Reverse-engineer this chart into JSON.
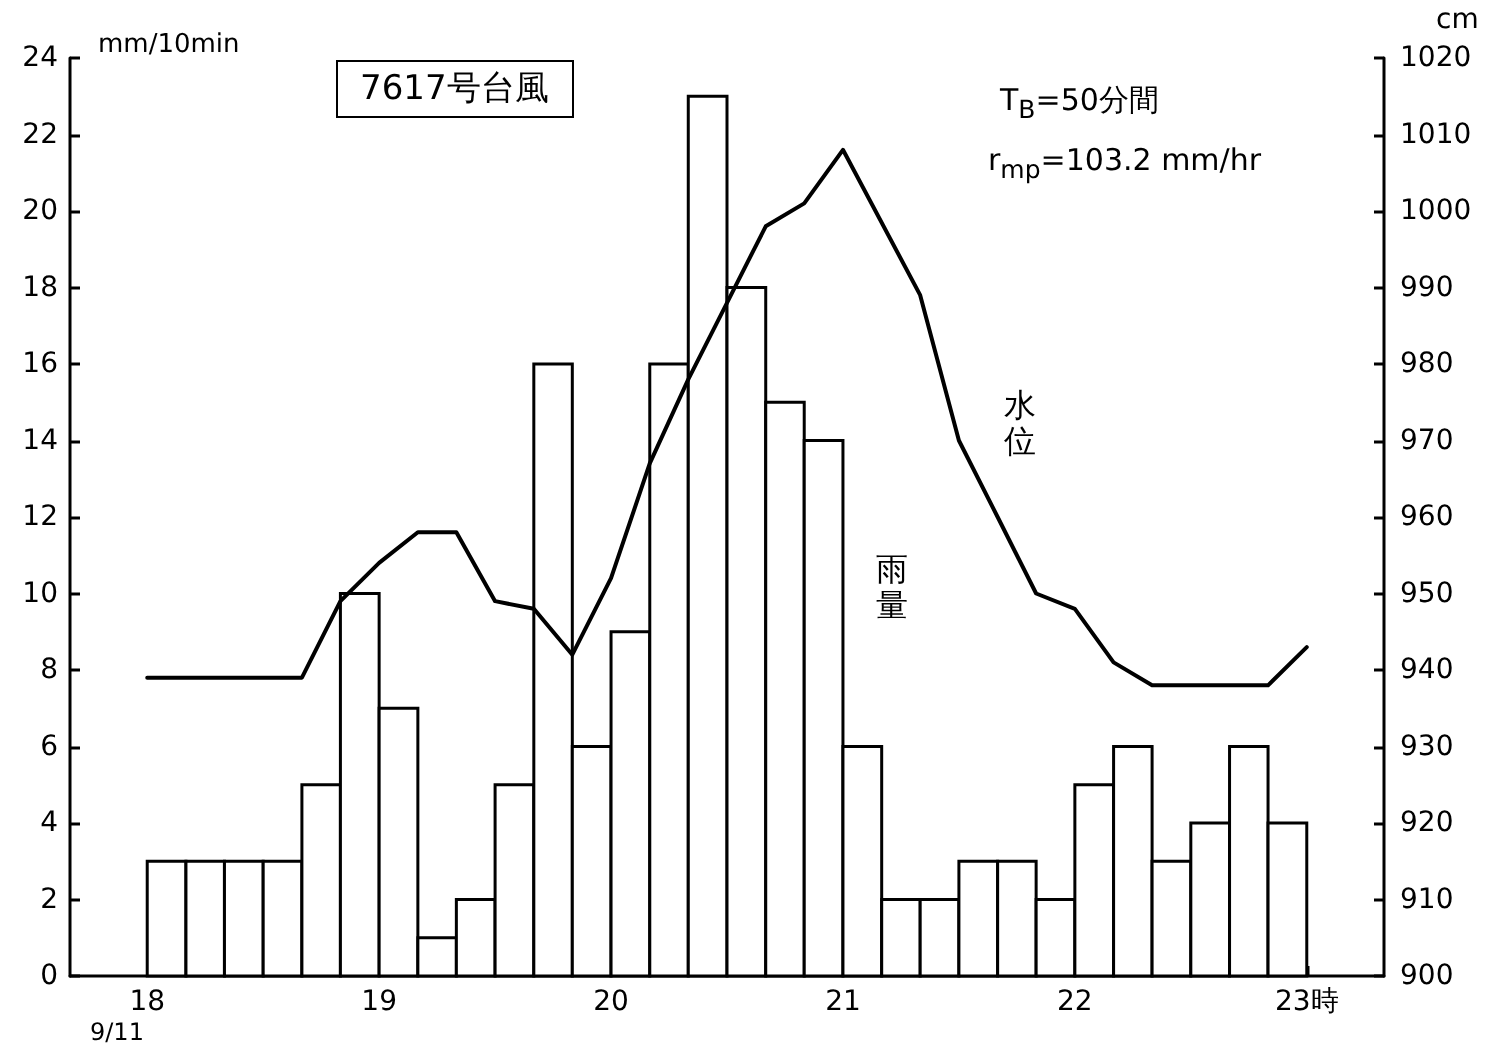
{
  "chart_data": {
    "type": "histogram",
    "title": "7617号台風",
    "ylabel": "mm/10min",
    "y2label": "cm",
    "annotations": [
      "T$_{B}$=50分間",
      "r$_{mp}$=103.2 mm/hr",
      "9/11"
    ],
    "bins": [
      18,
      18.167,
      18.333,
      18.5,
      18.667,
      18.833,
      19,
      19.167,
      19.333,
      19.5,
      19.667,
      19.833,
      20,
      20.167,
      20.333,
      20.5,
      20.667,
      20.833,
      21,
      21.167,
      21.333,
      21.5,
      21.667,
      21.833,
      22,
      22.167,
      22.333,
      22.5,
      22.667,
      22.833,
      23
    ],
    "series": [
      {
        "name": "雨量",
        "color": "#000000",
        "values": [
          3,
          3,
          3,
          3,
          5,
          10,
          7,
          1,
          2,
          5,
          16,
          6,
          9,
          16,
          23,
          18,
          15,
          14,
          6,
          2,
          2,
          3,
          3,
          2,
          5,
          6,
          3,
          4,
          6,
          4
        ]
      },
      {
        "name": "水位",
        "type": "line",
        "axis": "y2",
        "color": "#000000",
        "x": [
          18,
          18.667,
          18.833,
          19,
          19.167,
          19.333,
          19.5,
          19.667,
          19.833,
          20,
          20.167,
          20.333,
          20.5,
          20.667,
          20.833,
          21,
          21.333,
          21.5,
          21.667,
          21.833,
          22,
          22.167,
          22.333,
          22.833,
          23
        ],
        "values": [
          939,
          939,
          949,
          954,
          958,
          958,
          949,
          948,
          942,
          952,
          967,
          978,
          988,
          998,
          1001,
          1008,
          989,
          970,
          960,
          950,
          948,
          941,
          938,
          938,
          943
        ]
      }
    ],
    "xlim": [
      17.667,
      23.333
    ],
    "xticks": [
      18,
      19,
      20,
      21,
      22,
      {
        "value": 23,
        "label": "23時"
      }
    ],
    "ylim": [
      0,
      24
    ],
    "yticks": [
      0,
      2,
      4,
      6,
      8,
      10,
      12,
      14,
      16,
      18,
      20,
      22,
      24
    ],
    "y2lim": [
      900,
      1020
    ],
    "y2ticks": [
      900,
      910,
      920,
      930,
      940,
      950,
      960,
      970,
      980,
      990,
      1000,
      1010,
      1020
    ],
    "grid": false,
    "legend": false,
    "marker": "none",
    "line_style": "solid"
  }
}
